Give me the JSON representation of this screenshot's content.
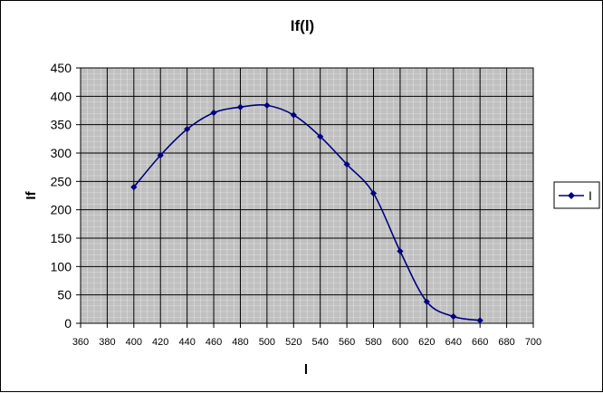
{
  "chart_data": {
    "type": "line",
    "title": "If(l)",
    "xlabel": "l",
    "ylabel": "If",
    "xlim": [
      360,
      700
    ],
    "ylim": [
      0,
      450
    ],
    "x_ticks": [
      "360",
      "380",
      "400",
      "420",
      "440",
      "460",
      "480",
      "500",
      "520",
      "540",
      "560",
      "580",
      "600",
      "620",
      "640",
      "660",
      "680",
      "700"
    ],
    "y_ticks": [
      "0",
      "50",
      "100",
      "150",
      "200",
      "250",
      "300",
      "350",
      "400",
      "450"
    ],
    "grid": true,
    "legend_position": "right",
    "series": [
      {
        "name": "I",
        "color": "#000080",
        "marker": "diamond",
        "x": [
          400,
          420,
          440,
          460,
          480,
          500,
          520,
          540,
          560,
          580,
          600,
          620,
          640,
          660
        ],
        "y": [
          240,
          296,
          342,
          371,
          381,
          384,
          367,
          329,
          280,
          229,
          127,
          38,
          12,
          5
        ]
      }
    ]
  }
}
